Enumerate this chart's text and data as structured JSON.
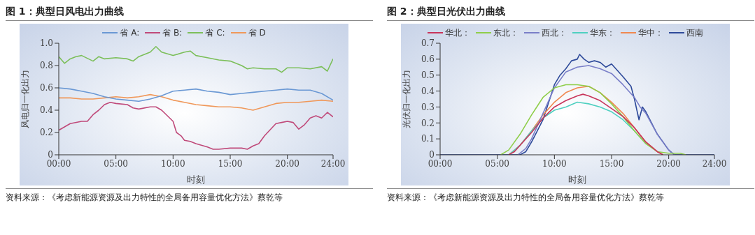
{
  "chart_data": [
    {
      "type": "line",
      "title": "图 1：典型日风电出力曲线",
      "xlabel": "时刻",
      "ylabel": "风电归一化出力",
      "xlim": [
        0,
        24
      ],
      "xticks": [
        {
          "value": 0,
          "label": "00:00"
        },
        {
          "value": 5,
          "label": "05:00"
        },
        {
          "value": 10,
          "label": "10:00"
        },
        {
          "value": 15,
          "label": "15:00"
        },
        {
          "value": 20,
          "label": "20:00"
        },
        {
          "value": 24,
          "label": "24:00"
        }
      ],
      "ylim": [
        0,
        1
      ],
      "yticks": [
        0,
        0.2,
        0.4,
        0.6,
        0.8,
        {
          "value": 1,
          "label": "1.0"
        }
      ],
      "grid": false,
      "legend": "top",
      "marker": "none",
      "line_style": "solid",
      "annotations": [
        "资料来源：《考虑新能源资源及出力特性的全局备用容量优化方法》蔡乾等"
      ],
      "series": [
        {
          "name": "省 A:",
          "color": "#6a98d4",
          "x": [
            0,
            1,
            2,
            3,
            4,
            5,
            6,
            7,
            8,
            9,
            10,
            11,
            12,
            13,
            14,
            15,
            16,
            17,
            18,
            19,
            20,
            21,
            22,
            23,
            24
          ],
          "values": [
            0.6,
            0.59,
            0.57,
            0.55,
            0.52,
            0.5,
            0.49,
            0.48,
            0.5,
            0.53,
            0.57,
            0.58,
            0.59,
            0.57,
            0.56,
            0.54,
            0.55,
            0.56,
            0.57,
            0.58,
            0.59,
            0.58,
            0.58,
            0.55,
            0.49
          ]
        },
        {
          "name": "省 B:",
          "color": "#c04a7a",
          "x": [
            0,
            1,
            2,
            2.5,
            3,
            3.5,
            4,
            4.5,
            5,
            6,
            6.5,
            7,
            8,
            8.5,
            9,
            10,
            10.3,
            10.7,
            11,
            11.5,
            12,
            13,
            13.5,
            14,
            15,
            16,
            16.5,
            17,
            17.5,
            18,
            19,
            19.5,
            20,
            20.5,
            21,
            21.5,
            22,
            22.5,
            23,
            23.5,
            24
          ],
          "values": [
            0.22,
            0.28,
            0.3,
            0.3,
            0.36,
            0.4,
            0.45,
            0.47,
            0.46,
            0.45,
            0.42,
            0.41,
            0.43,
            0.43,
            0.4,
            0.3,
            0.2,
            0.17,
            0.13,
            0.12,
            0.1,
            0.07,
            0.05,
            0.05,
            0.06,
            0.06,
            0.05,
            0.08,
            0.1,
            0.17,
            0.28,
            0.29,
            0.3,
            0.29,
            0.23,
            0.27,
            0.33,
            0.35,
            0.33,
            0.38,
            0.34
          ]
        },
        {
          "name": "省 C:",
          "color": "#7cbf5a",
          "x": [
            0,
            0.5,
            1,
            1.5,
            2,
            3,
            3.5,
            4,
            5,
            6,
            6.5,
            7,
            8,
            8.5,
            9,
            10,
            11,
            11.5,
            12,
            13,
            14,
            15,
            16,
            16.5,
            17,
            18,
            19,
            19.5,
            20,
            21,
            22,
            23,
            23.5,
            24
          ],
          "values": [
            0.88,
            0.82,
            0.86,
            0.88,
            0.89,
            0.84,
            0.88,
            0.86,
            0.87,
            0.86,
            0.84,
            0.88,
            0.92,
            0.97,
            0.92,
            0.89,
            0.92,
            0.93,
            0.89,
            0.87,
            0.85,
            0.84,
            0.8,
            0.77,
            0.78,
            0.77,
            0.77,
            0.74,
            0.78,
            0.78,
            0.77,
            0.79,
            0.75,
            0.86
          ]
        },
        {
          "name": "省 D",
          "color": "#f0985a",
          "x": [
            0,
            1,
            2,
            3,
            4,
            5,
            6,
            7,
            8,
            9,
            10,
            11,
            12,
            13,
            14,
            15,
            16,
            17,
            18,
            19,
            20,
            21,
            22,
            23,
            24
          ],
          "values": [
            0.51,
            0.51,
            0.5,
            0.5,
            0.51,
            0.52,
            0.51,
            0.52,
            0.54,
            0.52,
            0.49,
            0.47,
            0.45,
            0.44,
            0.43,
            0.43,
            0.42,
            0.4,
            0.43,
            0.46,
            0.47,
            0.47,
            0.48,
            0.49,
            0.48
          ]
        }
      ]
    },
    {
      "type": "line",
      "title": "图 2：典型日光伏出力曲线",
      "xlabel": "时刻",
      "ylabel": "光伏归一化出力",
      "xlim": [
        0,
        24
      ],
      "xticks": [
        {
          "value": 0,
          "label": "00:00"
        },
        {
          "value": 5,
          "label": "05:00"
        },
        {
          "value": 10,
          "label": "10:00"
        },
        {
          "value": 15,
          "label": "15:00"
        },
        {
          "value": 20,
          "label": "20:00"
        },
        {
          "value": 24,
          "label": "24:00"
        }
      ],
      "ylim": [
        0,
        0.7
      ],
      "yticks": [
        0,
        0.1,
        0.2,
        0.3,
        0.4,
        0.5,
        0.6,
        0.7
      ],
      "grid": false,
      "legend": "top",
      "marker": "none",
      "line_style": "solid",
      "annotations": [
        "资料来源：《考虑新能源资源及出力特性的全局备用容量优化方法》蔡乾等"
      ],
      "series": [
        {
          "name": "华北：",
          "color": "#c8345a",
          "x": [
            6,
            6.5,
            7,
            8,
            9,
            10,
            11,
            12,
            12.5,
            13,
            14,
            15,
            16,
            17,
            18,
            19,
            19.5
          ],
          "values": [
            0,
            0.02,
            0.06,
            0.14,
            0.23,
            0.3,
            0.34,
            0.37,
            0.38,
            0.37,
            0.34,
            0.29,
            0.24,
            0.17,
            0.08,
            0.02,
            0
          ]
        },
        {
          "name": "东北：",
          "color": "#8fce4a",
          "x": [
            5.3,
            6,
            7,
            8,
            9,
            10,
            11,
            12,
            13,
            14,
            15,
            16,
            17,
            18,
            19,
            20,
            21,
            21.5
          ],
          "values": [
            0,
            0.03,
            0.13,
            0.25,
            0.36,
            0.42,
            0.44,
            0.44,
            0.43,
            0.39,
            0.32,
            0.24,
            0.15,
            0.07,
            0.02,
            0.01,
            0.01,
            0
          ]
        },
        {
          "name": "西北：",
          "color": "#7a7fc8",
          "x": [
            6.8,
            7.5,
            8,
            9,
            10,
            11,
            12,
            13,
            14,
            15,
            16,
            17,
            17.5,
            18,
            19,
            20,
            20.5
          ],
          "values": [
            0,
            0.04,
            0.1,
            0.26,
            0.42,
            0.52,
            0.55,
            0.56,
            0.54,
            0.51,
            0.44,
            0.36,
            0.3,
            0.26,
            0.13,
            0.03,
            0
          ]
        },
        {
          "name": "华东：",
          "color": "#4fd0c0",
          "x": [
            6,
            7,
            8,
            9,
            10,
            11,
            12,
            13,
            14,
            15,
            16,
            17,
            18
          ],
          "values": [
            0,
            0.06,
            0.15,
            0.23,
            0.28,
            0.3,
            0.33,
            0.32,
            0.3,
            0.27,
            0.22,
            0.15,
            0.07
          ]
        },
        {
          "name": "华中：",
          "color": "#f08850",
          "x": [
            6,
            7,
            8,
            9,
            10,
            11,
            12,
            13,
            14,
            15,
            16,
            17,
            18,
            19,
            19.5
          ],
          "values": [
            0,
            0.06,
            0.15,
            0.25,
            0.33,
            0.39,
            0.42,
            0.43,
            0.39,
            0.33,
            0.26,
            0.17,
            0.08,
            0.02,
            0
          ]
        },
        {
          "name": "西南",
          "color": "#2e4a9a",
          "x": [
            0,
            7,
            7.5,
            8,
            9,
            10,
            10.5,
            11,
            11.5,
            12,
            12.2,
            12.6,
            13,
            13.5,
            14,
            14.5,
            15,
            16,
            16.7,
            17,
            17.4,
            17.7,
            18,
            19,
            20,
            20.5,
            24
          ],
          "values": [
            0,
            0,
            0.02,
            0.08,
            0.22,
            0.44,
            0.5,
            0.54,
            0.59,
            0.6,
            0.63,
            0.6,
            0.58,
            0.59,
            0.58,
            0.55,
            0.57,
            0.49,
            0.43,
            0.35,
            0.22,
            0.3,
            0.27,
            0.13,
            0.03,
            0,
            0
          ]
        }
      ]
    }
  ]
}
